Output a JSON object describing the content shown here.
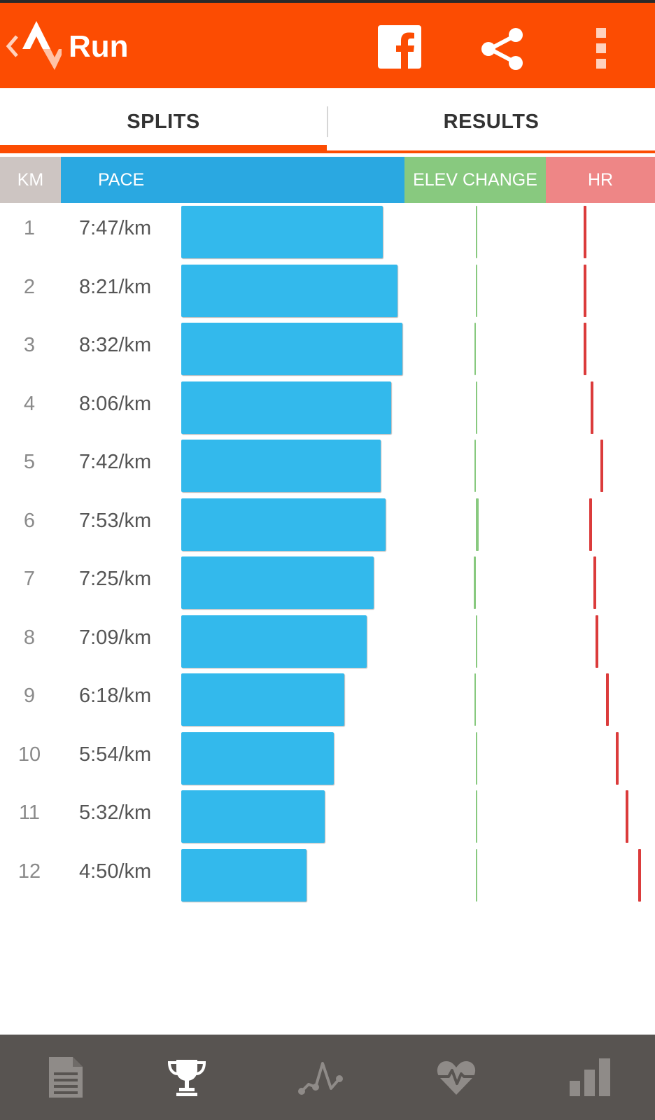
{
  "app_bar": {
    "title": "Run",
    "icons": [
      "back-chevron-icon",
      "strava-logo-icon",
      "facebook-icon",
      "share-icon",
      "overflow-menu-icon"
    ],
    "accent_color": "#fc4c02"
  },
  "tabs": [
    {
      "label": "SPLITS",
      "selected": true
    },
    {
      "label": "RESULTS",
      "selected": false
    }
  ],
  "columns": {
    "km": "KM",
    "pace": "PACE",
    "elev": "ELEV CHANGE",
    "hr": "HR",
    "colors": {
      "km": "#cdc5c2",
      "pace": "#2aa8e1",
      "elev": "#88c97f",
      "hr": "#ee8686"
    }
  },
  "chart_data": {
    "type": "bar",
    "categories": [
      "1",
      "2",
      "3",
      "4",
      "5",
      "6",
      "7",
      "8",
      "9",
      "10",
      "11",
      "12"
    ],
    "series": [
      {
        "name": "PACE",
        "values": [
          "7:47/km",
          "8:21/km",
          "8:32/km",
          "8:06/km",
          "7:42/km",
          "7:53/km",
          "7:25/km",
          "7:09/km",
          "6:18/km",
          "5:54/km",
          "5:32/km",
          "4:50/km"
        ]
      }
    ],
    "pace_seconds_per_km": [
      467,
      501,
      512,
      486,
      462,
      473,
      445,
      429,
      378,
      354,
      332,
      290
    ],
    "elev_change_relative": [
      0.0,
      0.0,
      -0.15,
      0.0,
      -0.1,
      0.25,
      -0.2,
      0.15,
      -0.15,
      0.0,
      0.0,
      0.0
    ],
    "hr_relative": [
      0.1,
      0.1,
      0.1,
      0.17,
      0.27,
      0.16,
      0.2,
      0.22,
      0.33,
      0.43,
      0.53,
      0.66
    ]
  },
  "bottom_nav": [
    {
      "icon": "document-icon",
      "selected": false
    },
    {
      "icon": "trophy-icon",
      "selected": true
    },
    {
      "icon": "elevation-icon",
      "selected": false
    },
    {
      "icon": "heart-rate-icon",
      "selected": false
    },
    {
      "icon": "bar-chart-icon",
      "selected": false
    }
  ]
}
